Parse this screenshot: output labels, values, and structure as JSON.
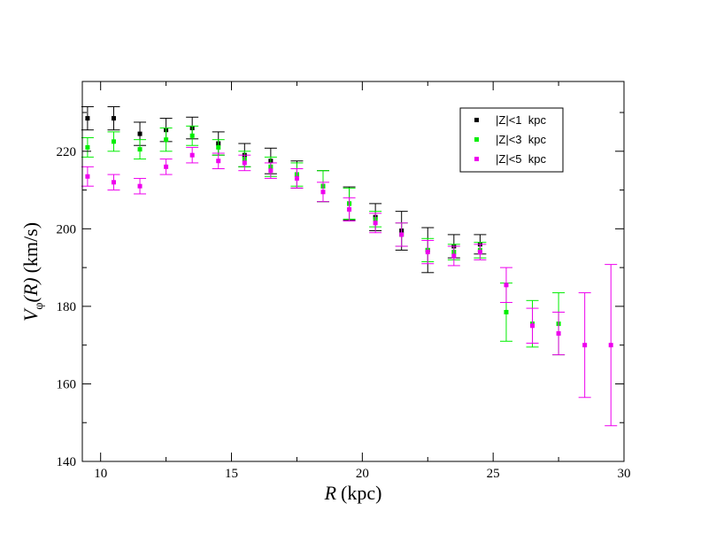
{
  "chart_data": {
    "type": "scatter",
    "title": "",
    "xlabel": {
      "var": "R",
      "unit": "(kpc)"
    },
    "ylabel": {
      "var": "V",
      "sub": "φ",
      "arg": "(R)",
      "unit": "(km/s)"
    },
    "xlim": [
      9.3,
      30.0
    ],
    "ylim": [
      140,
      238
    ],
    "xticks": [
      10,
      15,
      20,
      25,
      30
    ],
    "yticks": [
      140,
      160,
      180,
      200,
      220
    ],
    "xtick_labels": [
      "10",
      "15",
      "20",
      "25",
      "30"
    ],
    "ytick_labels": [
      "140",
      "160",
      "180",
      "200",
      "220"
    ],
    "grid": false,
    "legend_position": "top-right",
    "series": [
      {
        "name": "|Z|<1  kpc",
        "color": "#000000",
        "x": [
          9.5,
          10.5,
          11.5,
          12.5,
          13.5,
          14.5,
          15.5,
          16.5,
          17.5,
          18.5,
          19.5,
          20.5,
          21.5,
          22.5,
          23.5,
          24.5
        ],
        "y": [
          228.5,
          228.5,
          224.5,
          225.5,
          226.0,
          222.0,
          219.0,
          217.5,
          214.0,
          211.0,
          206.5,
          203.0,
          199.5,
          194.5,
          195.5,
          196.0
        ],
        "err": [
          3.0,
          3.0,
          3.0,
          3.0,
          2.8,
          3.0,
          3.0,
          3.3,
          3.5,
          4.0,
          4.3,
          3.5,
          5.0,
          5.8,
          3.0,
          2.5
        ]
      },
      {
        "name": "|Z|<3  kpc",
        "color": "#00ee00",
        "x": [
          9.5,
          10.5,
          11.5,
          12.5,
          13.5,
          14.5,
          15.5,
          16.5,
          17.5,
          18.5,
          19.5,
          20.5,
          21.5,
          22.5,
          23.5,
          24.5,
          25.5,
          26.5,
          27.5
        ],
        "y": [
          221.0,
          222.5,
          220.5,
          223.0,
          224.0,
          221.0,
          218.0,
          216.0,
          214.0,
          211.0,
          206.5,
          202.5,
          198.5,
          194.5,
          194.0,
          194.5,
          178.5,
          175.5,
          175.5
        ],
        "err": [
          2.5,
          2.5,
          2.5,
          3.0,
          2.5,
          2.0,
          2.0,
          2.5,
          3.0,
          4.0,
          4.0,
          2.0,
          3.0,
          3.0,
          2.0,
          2.0,
          7.5,
          6.0,
          8.0
        ]
      },
      {
        "name": "|Z|<5  kpc",
        "color": "#ee00ee",
        "x": [
          9.5,
          10.5,
          11.5,
          12.5,
          13.5,
          14.5,
          15.5,
          16.5,
          17.5,
          18.5,
          19.5,
          20.5,
          21.5,
          22.5,
          23.5,
          24.5,
          25.5,
          26.5,
          27.5,
          28.5,
          29.5
        ],
        "y": [
          213.5,
          212.0,
          211.0,
          216.0,
          219.0,
          217.5,
          217.0,
          215.0,
          213.0,
          209.5,
          205.0,
          201.5,
          198.5,
          194.0,
          193.0,
          194.0,
          185.5,
          175.0,
          173.0,
          170.0,
          170.0
        ],
        "err": [
          2.5,
          2.0,
          2.0,
          2.0,
          2.0,
          2.0,
          2.0,
          2.0,
          2.5,
          2.5,
          3.0,
          2.5,
          3.0,
          3.0,
          2.5,
          2.0,
          4.5,
          4.5,
          5.5,
          13.5,
          20.8
        ]
      }
    ]
  }
}
